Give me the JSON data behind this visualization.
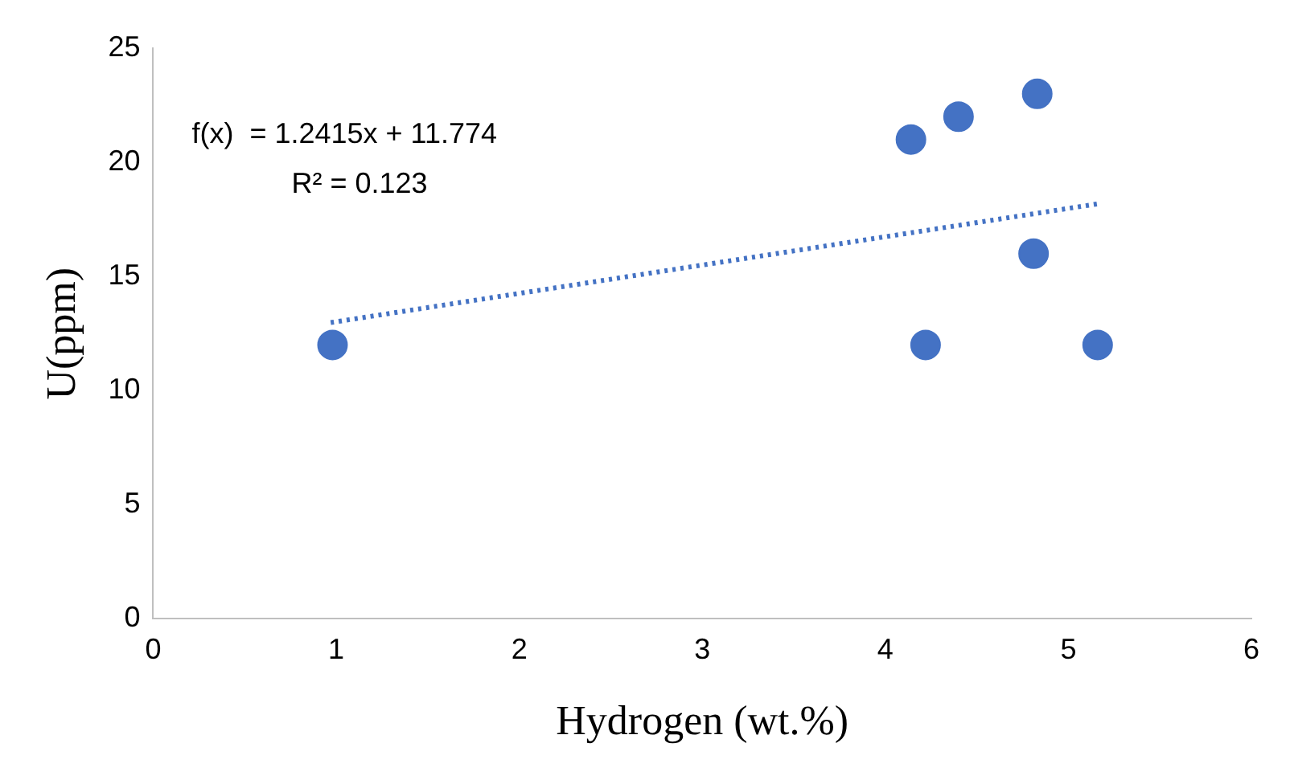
{
  "chart_data": {
    "type": "scatter",
    "xlabel": "Hydrogen (wt.%)",
    "ylabel": "U(ppm)",
    "xlim": [
      0,
      6
    ],
    "xticks": [
      0,
      1,
      2,
      3,
      4,
      5,
      6
    ],
    "ylim": [
      0,
      25
    ],
    "yticks": [
      0,
      5,
      10,
      15,
      20,
      25
    ],
    "grid": false,
    "legend": false,
    "marker": "circle",
    "annotations": [
      "f(x)  = 1.2415x + 11.774",
      "R² = 0.123"
    ],
    "series": [
      {
        "type": "scatter",
        "color": "#4472c4",
        "x": [
          0.98,
          4.14,
          4.4,
          4.83,
          4.81,
          4.22,
          5.16
        ],
        "values": [
          12,
          21,
          22,
          23,
          16,
          12,
          12
        ]
      },
      {
        "type": "line",
        "color": "#4472c4",
        "line_style": "dotted",
        "marker": "none",
        "x": [
          0.97,
          5.16
        ],
        "values": [
          12.98,
          18.18
        ]
      }
    ]
  }
}
